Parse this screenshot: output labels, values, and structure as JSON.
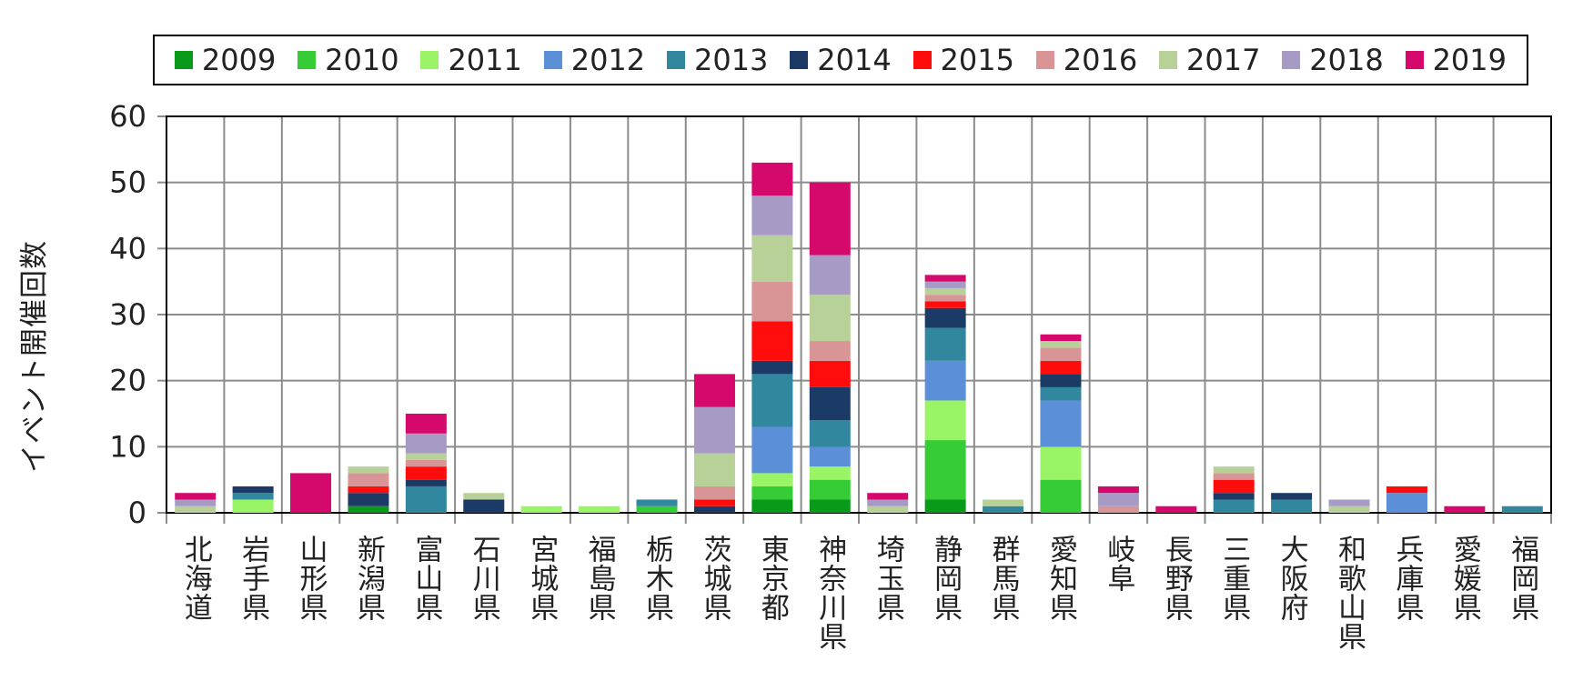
{
  "chart_data": {
    "type": "bar",
    "stacked": true,
    "ylabel": "イベント開催回数",
    "xlabel": "",
    "ylim": [
      0,
      60
    ],
    "yticks": [
      0,
      10,
      20,
      30,
      40,
      50,
      60
    ],
    "grid": true,
    "legend_position": "top",
    "categories": [
      "北海道",
      "岩手県",
      "山形県",
      "新潟県",
      "富山県",
      "石川県",
      "宮城県",
      "福島県",
      "栃木県",
      "茨城県",
      "東京都",
      "神奈川県",
      "埼玉県",
      "静岡県",
      "群馬県",
      "愛知県",
      "岐阜",
      "長野県",
      "三重県",
      "大阪府",
      "和歌山県",
      "兵庫県",
      "愛媛県",
      "福岡県"
    ],
    "series": [
      {
        "name": "2009",
        "color": "#0a9a1a",
        "values": [
          0,
          0,
          0,
          1,
          0,
          0,
          0,
          0,
          0,
          0,
          2,
          2,
          0,
          2,
          0,
          0,
          0,
          0,
          0,
          0,
          0,
          0,
          0,
          0
        ]
      },
      {
        "name": "2010",
        "color": "#35cc35",
        "values": [
          0,
          0,
          0,
          0,
          0,
          0,
          0,
          0,
          1,
          0,
          2,
          3,
          0,
          9,
          0,
          5,
          0,
          0,
          0,
          0,
          0,
          0,
          0,
          0
        ]
      },
      {
        "name": "2011",
        "color": "#99f565",
        "values": [
          0,
          2,
          0,
          0,
          0,
          0,
          1,
          1,
          0,
          0,
          2,
          2,
          0,
          6,
          0,
          5,
          0,
          0,
          0,
          0,
          0,
          0,
          0,
          0
        ]
      },
      {
        "name": "2012",
        "color": "#5b8fd8",
        "values": [
          0,
          0,
          0,
          0,
          0,
          0,
          0,
          0,
          0,
          0,
          7,
          3,
          0,
          6,
          0,
          7,
          0,
          0,
          0,
          0,
          0,
          3,
          0,
          0
        ]
      },
      {
        "name": "2013",
        "color": "#31889e",
        "values": [
          0,
          1,
          0,
          0,
          4,
          0,
          0,
          0,
          1,
          0,
          8,
          4,
          0,
          5,
          1,
          2,
          0,
          0,
          2,
          2,
          0,
          0,
          0,
          1
        ]
      },
      {
        "name": "2014",
        "color": "#1c3a66",
        "values": [
          0,
          1,
          0,
          2,
          1,
          2,
          0,
          0,
          0,
          1,
          2,
          5,
          0,
          3,
          0,
          2,
          0,
          0,
          1,
          1,
          0,
          0,
          0,
          0
        ]
      },
      {
        "name": "2015",
        "color": "#ff0d0d",
        "values": [
          0,
          0,
          0,
          1,
          2,
          0,
          0,
          0,
          0,
          1,
          6,
          4,
          0,
          1,
          0,
          2,
          0,
          0,
          2,
          0,
          0,
          1,
          0,
          0
        ]
      },
      {
        "name": "2016",
        "color": "#d99595",
        "values": [
          0,
          0,
          0,
          2,
          1,
          0,
          0,
          0,
          0,
          2,
          6,
          3,
          0,
          1,
          0,
          2,
          1,
          0,
          1,
          0,
          0,
          0,
          0,
          0
        ]
      },
      {
        "name": "2017",
        "color": "#b8d199",
        "values": [
          1,
          0,
          0,
          1,
          1,
          1,
          0,
          0,
          0,
          5,
          7,
          7,
          1,
          1,
          1,
          1,
          0,
          0,
          1,
          0,
          1,
          0,
          0,
          0
        ]
      },
      {
        "name": "2018",
        "color": "#a79bc6",
        "values": [
          1,
          0,
          0,
          0,
          3,
          0,
          0,
          0,
          0,
          7,
          6,
          6,
          1,
          1,
          0,
          0,
          2,
          0,
          0,
          0,
          1,
          0,
          0,
          0
        ]
      },
      {
        "name": "2019",
        "color": "#d4096b",
        "values": [
          1,
          0,
          6,
          0,
          3,
          0,
          0,
          0,
          0,
          5,
          5,
          11,
          1,
          1,
          0,
          1,
          1,
          1,
          0,
          0,
          0,
          0,
          1,
          0
        ]
      }
    ]
  }
}
